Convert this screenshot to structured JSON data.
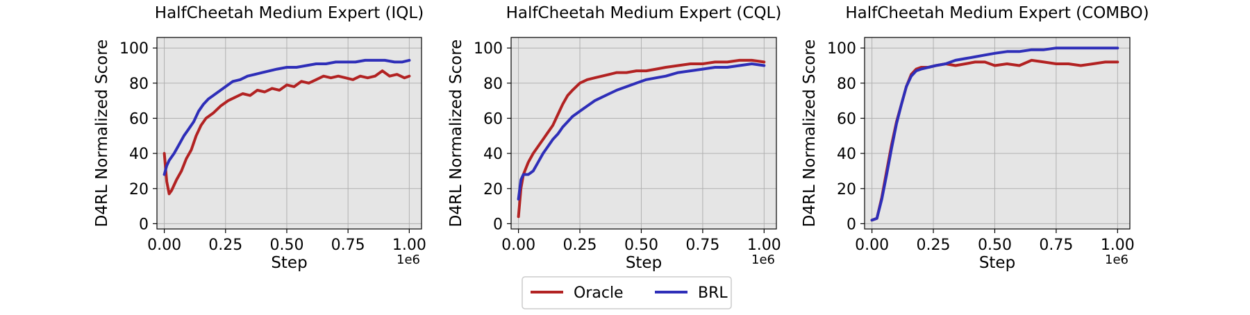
{
  "legend": {
    "items": [
      {
        "label": "Oracle",
        "color": "#b22222"
      },
      {
        "label": "BRL",
        "color": "#2e2eb8"
      }
    ]
  },
  "chart_data": [
    {
      "type": "line",
      "title": "HalfCheetah Medium Expert (IQL)",
      "xlabel": "Step",
      "ylabel": "D4RL Normalized Score",
      "x_exponent_label": "1e6",
      "xlim": [
        -0.03,
        1.05
      ],
      "ylim": [
        -3,
        106
      ],
      "x_ticks": [
        0,
        0.25,
        0.5,
        0.75,
        1.0
      ],
      "x_tick_labels": [
        "0.00",
        "0.25",
        "0.50",
        "0.75",
        "1.00"
      ],
      "y_ticks": [
        0,
        20,
        40,
        60,
        80,
        100
      ],
      "y_tick_labels": [
        "0",
        "20",
        "40",
        "60",
        "80",
        "100"
      ],
      "grid": true,
      "series": [
        {
          "name": "Oracle",
          "color": "#b22222",
          "x": [
            0.0,
            0.01,
            0.02,
            0.03,
            0.05,
            0.07,
            0.09,
            0.11,
            0.13,
            0.15,
            0.17,
            0.2,
            0.23,
            0.26,
            0.29,
            0.32,
            0.35,
            0.38,
            0.41,
            0.44,
            0.47,
            0.5,
            0.53,
            0.56,
            0.59,
            0.62,
            0.65,
            0.68,
            0.71,
            0.74,
            0.77,
            0.8,
            0.83,
            0.86,
            0.89,
            0.92,
            0.95,
            0.98,
            1.0
          ],
          "y": [
            40,
            24,
            17,
            19,
            25,
            30,
            37,
            42,
            50,
            56,
            60,
            63,
            67,
            70,
            72,
            74,
            73,
            76,
            75,
            77,
            76,
            79,
            78,
            81,
            80,
            82,
            84,
            83,
            84,
            83,
            82,
            84,
            83,
            84,
            87,
            84,
            85,
            83,
            84
          ]
        },
        {
          "name": "BRL",
          "color": "#2e2eb8",
          "x": [
            0.0,
            0.01,
            0.02,
            0.04,
            0.06,
            0.08,
            0.1,
            0.12,
            0.14,
            0.16,
            0.18,
            0.2,
            0.22,
            0.25,
            0.28,
            0.31,
            0.34,
            0.37,
            0.4,
            0.43,
            0.46,
            0.5,
            0.54,
            0.58,
            0.62,
            0.66,
            0.7,
            0.74,
            0.78,
            0.82,
            0.86,
            0.9,
            0.94,
            0.97,
            1.0
          ],
          "y": [
            28,
            33,
            36,
            40,
            45,
            50,
            54,
            58,
            64,
            68,
            71,
            73,
            75,
            78,
            81,
            82,
            84,
            85,
            86,
            87,
            88,
            89,
            89,
            90,
            91,
            91,
            92,
            92,
            92,
            93,
            93,
            93,
            92,
            92,
            93
          ]
        }
      ]
    },
    {
      "type": "line",
      "title": "HalfCheetah Medium Expert (CQL)",
      "xlabel": "Step",
      "ylabel": "D4RL Normalized Score",
      "x_exponent_label": "1e6",
      "xlim": [
        -0.03,
        1.05
      ],
      "ylim": [
        -3,
        106
      ],
      "x_ticks": [
        0,
        0.25,
        0.5,
        0.75,
        1.0
      ],
      "x_tick_labels": [
        "0.00",
        "0.25",
        "0.50",
        "0.75",
        "1.00"
      ],
      "y_ticks": [
        0,
        20,
        40,
        60,
        80,
        100
      ],
      "y_tick_labels": [
        "0",
        "20",
        "40",
        "60",
        "80",
        "100"
      ],
      "grid": true,
      "series": [
        {
          "name": "Oracle",
          "color": "#b22222",
          "x": [
            0.0,
            0.01,
            0.02,
            0.04,
            0.06,
            0.08,
            0.1,
            0.12,
            0.14,
            0.16,
            0.18,
            0.2,
            0.22,
            0.25,
            0.28,
            0.31,
            0.34,
            0.37,
            0.4,
            0.44,
            0.48,
            0.52,
            0.56,
            0.6,
            0.65,
            0.7,
            0.75,
            0.8,
            0.85,
            0.9,
            0.95,
            1.0
          ],
          "y": [
            4,
            20,
            28,
            35,
            40,
            44,
            48,
            52,
            56,
            62,
            68,
            73,
            76,
            80,
            82,
            83,
            84,
            85,
            86,
            86,
            87,
            87,
            88,
            89,
            90,
            91,
            91,
            92,
            92,
            93,
            93,
            92
          ]
        },
        {
          "name": "BRL",
          "color": "#2e2eb8",
          "x": [
            0.0,
            0.01,
            0.02,
            0.04,
            0.06,
            0.08,
            0.1,
            0.12,
            0.14,
            0.16,
            0.18,
            0.2,
            0.22,
            0.25,
            0.28,
            0.31,
            0.34,
            0.37,
            0.4,
            0.44,
            0.48,
            0.52,
            0.56,
            0.6,
            0.65,
            0.7,
            0.75,
            0.8,
            0.85,
            0.9,
            0.95,
            1.0
          ],
          "y": [
            14,
            25,
            28,
            28,
            30,
            35,
            40,
            44,
            48,
            51,
            55,
            58,
            61,
            64,
            67,
            70,
            72,
            74,
            76,
            78,
            80,
            82,
            83,
            84,
            86,
            87,
            88,
            89,
            89,
            90,
            91,
            90
          ]
        }
      ]
    },
    {
      "type": "line",
      "title": "HalfCheetah Medium Expert (COMBO)",
      "xlabel": "Step",
      "ylabel": "D4RL Normalized Score",
      "x_exponent_label": "1e6",
      "xlim": [
        -0.03,
        1.05
      ],
      "ylim": [
        -3,
        106
      ],
      "x_ticks": [
        0,
        0.25,
        0.5,
        0.75,
        1.0
      ],
      "x_tick_labels": [
        "0.00",
        "0.25",
        "0.50",
        "0.75",
        "1.00"
      ],
      "y_ticks": [
        0,
        20,
        40,
        60,
        80,
        100
      ],
      "y_tick_labels": [
        "0",
        "20",
        "40",
        "60",
        "80",
        "100"
      ],
      "grid": true,
      "series": [
        {
          "name": "Oracle",
          "color": "#b22222",
          "x": [
            0.0,
            0.02,
            0.04,
            0.06,
            0.08,
            0.1,
            0.12,
            0.14,
            0.16,
            0.18,
            0.2,
            0.23,
            0.26,
            0.3,
            0.34,
            0.38,
            0.42,
            0.46,
            0.5,
            0.55,
            0.6,
            0.65,
            0.7,
            0.75,
            0.8,
            0.85,
            0.9,
            0.95,
            1.0
          ],
          "y": [
            2,
            3,
            15,
            30,
            45,
            58,
            68,
            78,
            85,
            88,
            89,
            89,
            90,
            91,
            90,
            91,
            92,
            92,
            90,
            91,
            90,
            93,
            92,
            91,
            91,
            90,
            91,
            92,
            92
          ]
        },
        {
          "name": "BRL",
          "color": "#2e2eb8",
          "x": [
            0.0,
            0.02,
            0.04,
            0.06,
            0.08,
            0.1,
            0.12,
            0.14,
            0.16,
            0.18,
            0.2,
            0.23,
            0.26,
            0.3,
            0.34,
            0.38,
            0.42,
            0.46,
            0.5,
            0.55,
            0.6,
            0.65,
            0.7,
            0.75,
            0.8,
            0.85,
            0.9,
            0.95,
            1.0
          ],
          "y": [
            2,
            3,
            14,
            28,
            43,
            57,
            68,
            78,
            84,
            87,
            88,
            89,
            90,
            91,
            93,
            94,
            95,
            96,
            97,
            98,
            98,
            99,
            99,
            100,
            100,
            100,
            100,
            100,
            100
          ]
        }
      ]
    }
  ]
}
